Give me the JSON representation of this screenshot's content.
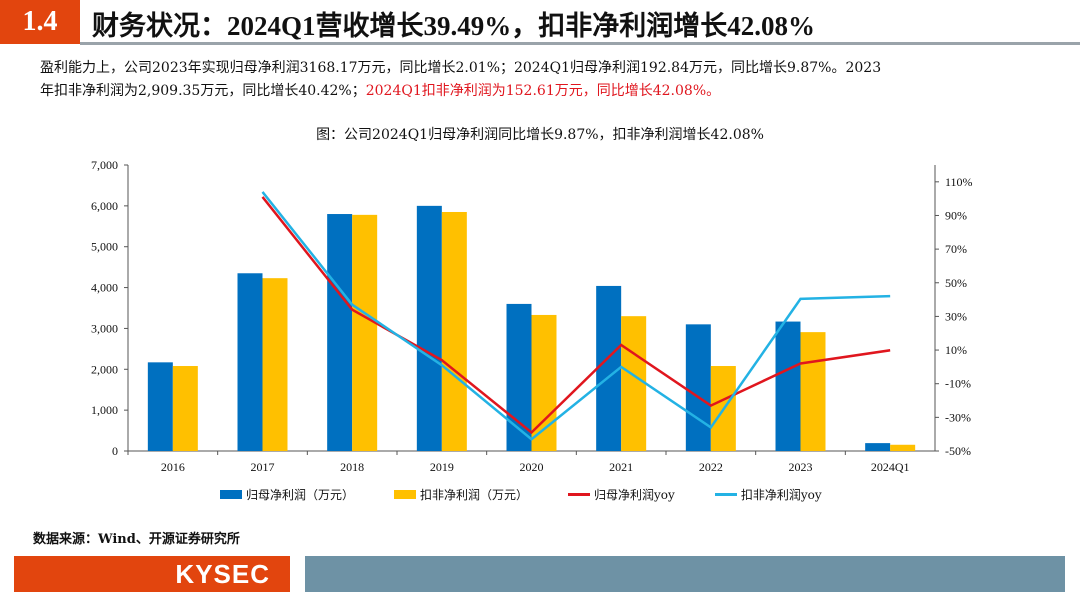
{
  "header": {
    "number": "1.4",
    "title": "财务状况：2024Q1营收增长39.49%，扣非净利润增长42.08%"
  },
  "summary": {
    "line1": "盈利能力上，公司2023年实现归母净利润3168.17万元，同比增长2.01%；2024Q1归母净利润192.84万元，同比增长9.87%。2023",
    "line2_black": "年扣非净利润为2,909.35万元，同比增长40.42%；",
    "line2_red": "2024Q1扣非净利润为152.61万元，同比增长42.08%。"
  },
  "chart_data": {
    "type": "bar+line",
    "title": "图：公司2024Q1归母净利润同比增长9.87%，扣非净利润增长42.08%",
    "categories": [
      "2016",
      "2017",
      "2018",
      "2019",
      "2020",
      "2021",
      "2022",
      "2023",
      "2024Q1"
    ],
    "y_left": {
      "range": [
        0,
        7000
      ],
      "ticks": [
        "0",
        "1,000",
        "2,000",
        "3,000",
        "4,000",
        "5,000",
        "6,000",
        "7,000"
      ]
    },
    "y_right": {
      "range": [
        -50,
        120
      ],
      "ticks": [
        "-50%",
        "-30%",
        "-10%",
        "10%",
        "30%",
        "50%",
        "70%",
        "90%",
        "110%"
      ]
    },
    "series": [
      {
        "name": "归母净利润（万元）",
        "kind": "bar",
        "axis": "left",
        "color": "#0070c0",
        "values": [
          2170,
          4350,
          5800,
          6000,
          3600,
          4040,
          3100,
          3168.17,
          192.84
        ]
      },
      {
        "name": "扣非净利润（万元）",
        "kind": "bar",
        "axis": "left",
        "color": "#ffc000",
        "values": [
          2080,
          4230,
          5780,
          5850,
          3330,
          3300,
          2080,
          2909.35,
          152.61
        ]
      },
      {
        "name": "归母净利润yoy",
        "kind": "line",
        "axis": "right",
        "color": "#e0161e",
        "values": [
          null,
          101,
          34,
          4,
          -39,
          13,
          -23,
          2.01,
          9.87
        ]
      },
      {
        "name": "扣非净利润yoy",
        "kind": "line",
        "axis": "right",
        "color": "#23b2e4",
        "values": [
          null,
          104,
          37,
          1,
          -43,
          0,
          -36,
          40.42,
          42.08
        ]
      }
    ],
    "grid": false,
    "legend": "bottom"
  },
  "source": "数据来源：Wind、开源证券研究所",
  "logo": "KYSEC"
}
